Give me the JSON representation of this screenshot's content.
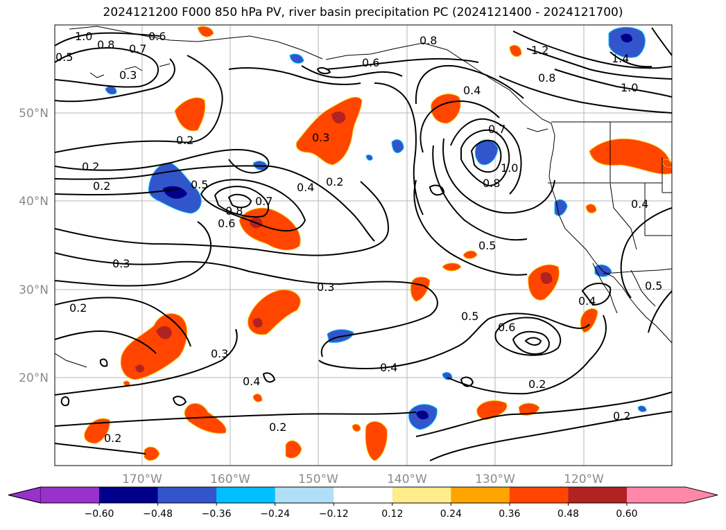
{
  "title": "2024121200 F000 850 hPa PV, river basin precipitation PC (2024121400 - 2024121700)",
  "map": {
    "lat_labels": [
      "50°N",
      "40°N",
      "30°N",
      "20°N"
    ],
    "lon_labels": [
      "170°W",
      "160°W",
      "150°W",
      "140°W",
      "130°W",
      "120°W"
    ],
    "grid": true,
    "contour_color": "#000000"
  },
  "contour_labels": [
    "1.0",
    "0.8",
    "0.7",
    "0.6",
    "0.5",
    "0.3",
    "0.8",
    "0.6",
    "1.2",
    "1.4",
    "1.0",
    "0.8",
    "0.4",
    "0.2",
    "0.2",
    "0.3",
    "0.2",
    "0.5",
    "0.8",
    "0.6",
    "0.7",
    "0.4",
    "0.2",
    "0.7",
    "1.0",
    "0.8",
    "0.4",
    "0.3",
    "0.3",
    "0.5",
    "0.2",
    "0.3",
    "0.4",
    "0.4",
    "0.5",
    "0.6",
    "0.4",
    "0.5",
    "0.2",
    "0.2",
    "0.2",
    "0.2"
  ],
  "colorbar": {
    "ticks": [
      "−0.60",
      "−0.48",
      "−0.36",
      "−0.24",
      "−0.12",
      "0.12",
      "0.24",
      "0.36",
      "0.48",
      "0.60"
    ],
    "colors": [
      "#9932cc",
      "#00008b",
      "#3355cc",
      "#00bfff",
      "#b0e0f8",
      "#ffffff",
      "#ffec8b",
      "#ffa500",
      "#ff4500",
      "#b22222",
      "#ff88aa"
    ]
  }
}
